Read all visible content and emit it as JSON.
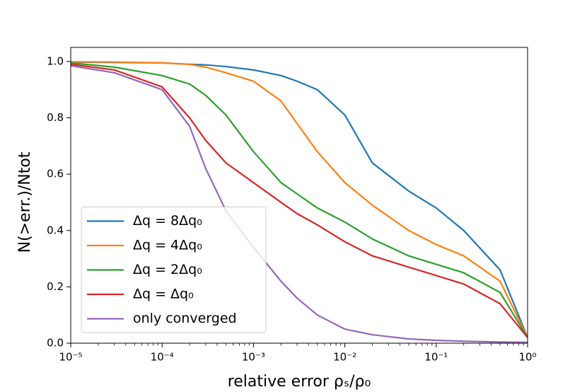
{
  "chart_data": {
    "type": "line",
    "xlabel": "relative error ρₛ/ρ₀",
    "ylabel": "N(>err.)/Ntot",
    "x": [
      1e-05,
      3e-05,
      0.0001,
      0.0002,
      0.0003,
      0.0005,
      0.001,
      0.002,
      0.003,
      0.005,
      0.01,
      0.02,
      0.05,
      0.1,
      0.2,
      0.5,
      1
    ],
    "series": [
      {
        "name": "Δq = 8Δq₀",
        "color": "#1f77b4",
        "values": [
          0.998,
          0.997,
          0.995,
          0.99,
          0.988,
          0.982,
          0.97,
          0.95,
          0.93,
          0.9,
          0.81,
          0.64,
          0.54,
          0.48,
          0.4,
          0.26,
          0.02
        ]
      },
      {
        "name": "Δq = 4Δq₀",
        "color": "#ff7f0e",
        "values": [
          0.999,
          0.998,
          0.995,
          0.99,
          0.98,
          0.96,
          0.93,
          0.86,
          0.78,
          0.68,
          0.57,
          0.49,
          0.4,
          0.35,
          0.31,
          0.22,
          0.02
        ]
      },
      {
        "name": "Δq = 2Δq₀",
        "color": "#2ca02c",
        "values": [
          0.995,
          0.98,
          0.95,
          0.92,
          0.88,
          0.81,
          0.68,
          0.57,
          0.53,
          0.48,
          0.43,
          0.37,
          0.31,
          0.28,
          0.25,
          0.18,
          0.02
        ]
      },
      {
        "name": "Δq = Δq₀",
        "color": "#d62728",
        "values": [
          0.99,
          0.97,
          0.91,
          0.8,
          0.72,
          0.64,
          0.57,
          0.5,
          0.46,
          0.42,
          0.36,
          0.31,
          0.27,
          0.24,
          0.21,
          0.14,
          0.02
        ]
      },
      {
        "name": "only converged",
        "color": "#9467bd",
        "values": [
          0.985,
          0.96,
          0.9,
          0.77,
          0.62,
          0.47,
          0.34,
          0.22,
          0.16,
          0.1,
          0.05,
          0.03,
          0.015,
          0.01,
          0.007,
          0.004,
          0.003
        ]
      }
    ],
    "xscale": "log",
    "xlim": [
      1e-05,
      1
    ],
    "xticks": [
      {
        "value": 1e-05,
        "label": "10⁻⁵"
      },
      {
        "value": 0.0001,
        "label": "10⁻⁴"
      },
      {
        "value": 0.001,
        "label": "10⁻³"
      },
      {
        "value": 0.01,
        "label": "10⁻²"
      },
      {
        "value": 0.1,
        "label": "10⁻¹"
      },
      {
        "value": 1,
        "label": "10⁰"
      }
    ],
    "ylim": [
      0,
      1.05
    ],
    "yticks": [
      {
        "value": 0,
        "label": "0.0"
      },
      0.2,
      0.4,
      0.6,
      0.8,
      {
        "value": 1,
        "label": "1.0"
      }
    ],
    "legend": "lower left",
    "grid": false
  }
}
